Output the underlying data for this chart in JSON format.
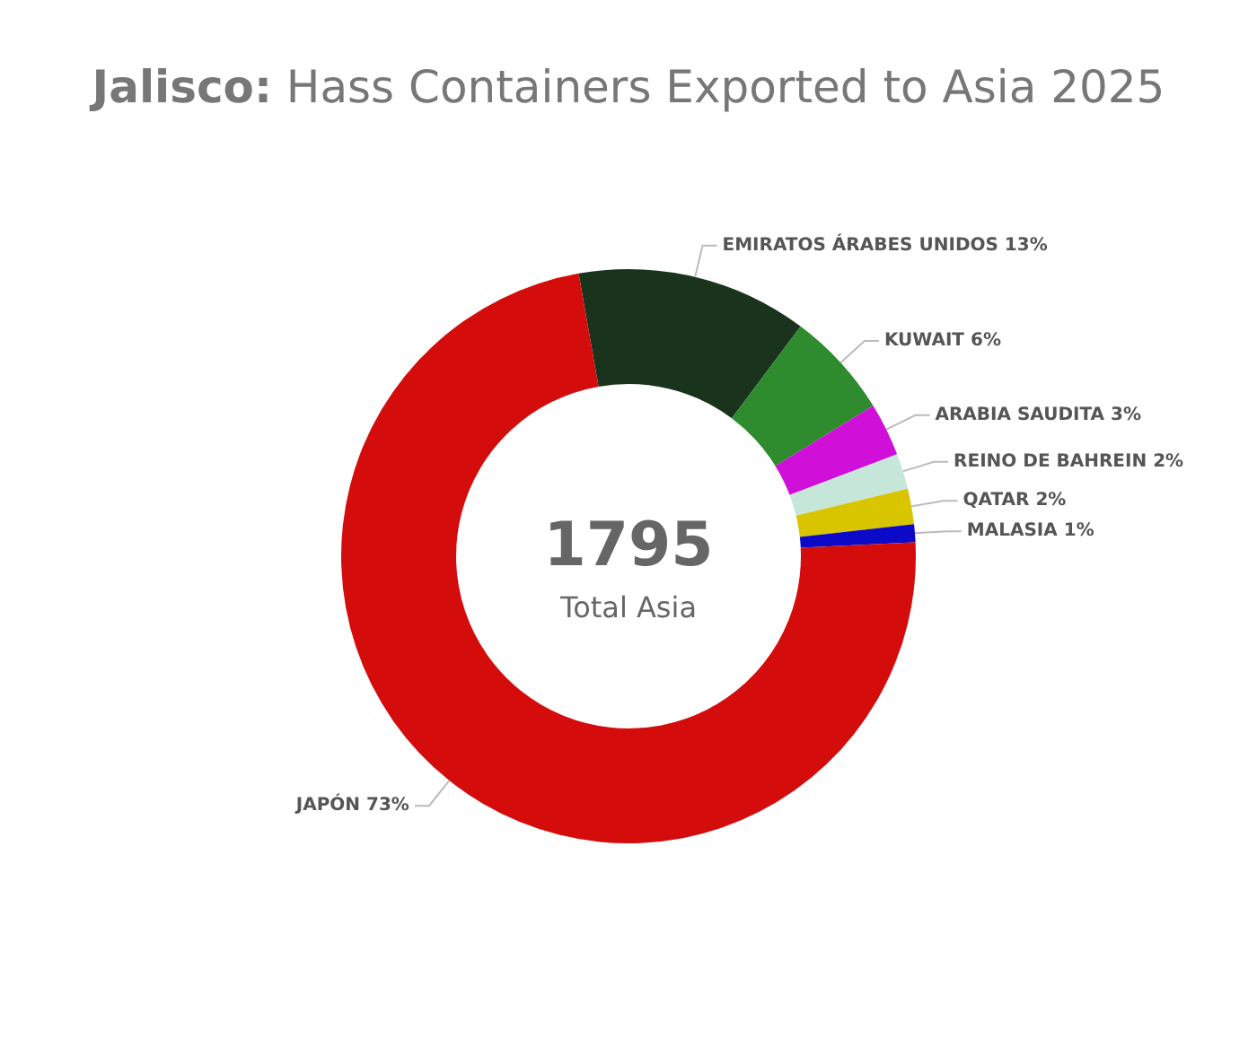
{
  "chart_data": {
    "type": "donut",
    "title": "Jalisco: Hass Containers Exported to Asia 2025",
    "categories": [
      "EMIRATOS ÁRABES UNIDOS",
      "KUWAIT",
      "ARABIA SAUDITA",
      "REINO DE BAHREIN",
      "QATAR",
      "MALASIA",
      "JAPÓN"
    ],
    "values": [
      13,
      6,
      3,
      2,
      2,
      1,
      73
    ],
    "value_labels": [
      "13%",
      "6%",
      "3%",
      "2%",
      "2%",
      "1%",
      "73%"
    ],
    "colors": [
      "#19331c",
      "#2e8b2e",
      "#d010d8",
      "#c5e6d9",
      "#d9c400",
      "#0a0ac8",
      "#d40c0c"
    ],
    "annotations": [
      "1795",
      "Total Asia"
    ],
    "legend": false
  }
}
